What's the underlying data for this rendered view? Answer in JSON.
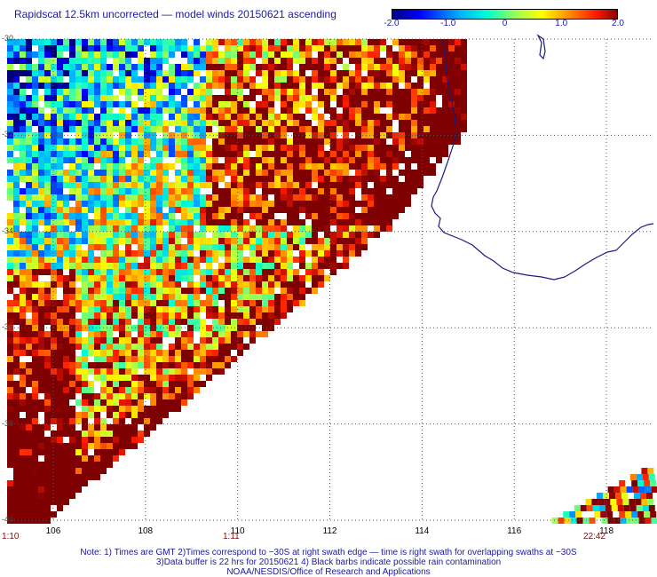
{
  "title": "Rapidscat 12.5km uncorrected — model winds 20150621 ascending",
  "colorbar": {
    "min": -2.0,
    "max": 2.0,
    "ticks": [
      "-2.0",
      "-1.0",
      "0",
      "1.0",
      "2.0"
    ],
    "tick_values": [
      -2.0,
      -1.0,
      0,
      1.0,
      2.0
    ]
  },
  "map": {
    "lat_labels": [
      "-30",
      "-32",
      "-34",
      "-36",
      "-38",
      "-40"
    ],
    "lat_values": [
      -30,
      -32,
      -34,
      -36,
      -38,
      -40
    ],
    "lon_labels": [
      "106",
      "108",
      "110",
      "112",
      "114",
      "116",
      "118"
    ],
    "lon_values": [
      106,
      108,
      110,
      112,
      114,
      116,
      118
    ],
    "lon_range": [
      105,
      119
    ],
    "lat_range": [
      -40,
      -30
    ],
    "grid": "dotted",
    "coastline_color": "#1a1a80"
  },
  "times": {
    "left": "1:10",
    "middle": "1:11",
    "right": "22:42"
  },
  "notes": {
    "line1": "Note: 1) Times are GMT 2)Times correspond to −30S at right swath edge — time is right swath for overlapping swaths at −30S",
    "line2": "3)Data buffer is 22 hrs for 20150621 4) Black barbs indicate possible rain contamination",
    "line3": "NOAA/NESDIS/Office of Research and Applications"
  }
}
